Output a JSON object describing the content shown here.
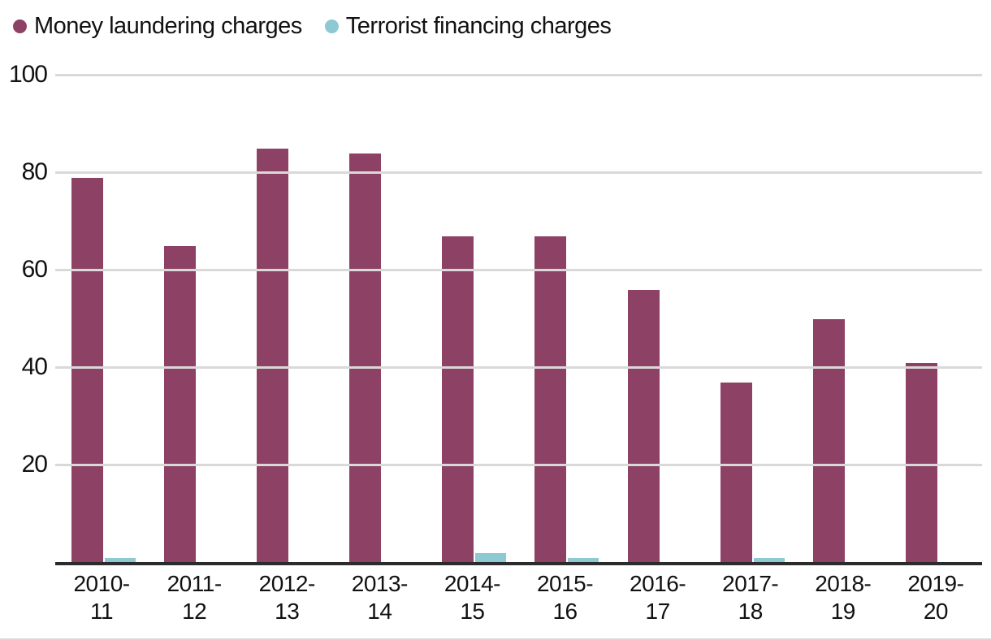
{
  "colors": {
    "money_laundering": "#8d4164",
    "terrorist_financing": "#8cc9d2",
    "gridline": "#d9d9d9",
    "axis_line": "#2b2b2b",
    "text": "#111111"
  },
  "chart_data": {
    "type": "bar",
    "title": "",
    "xlabel": "",
    "ylabel": "",
    "categories": [
      "2010-11",
      "2011-12",
      "2012-13",
      "2013-14",
      "2014-15",
      "2015-16",
      "2016-17",
      "2017-18",
      "2018-19",
      "2019-20"
    ],
    "series": [
      {
        "name": "Money laundering charges",
        "color": "#8d4164",
        "values": [
          79,
          65,
          85,
          84,
          67,
          67,
          56,
          37,
          50,
          41
        ]
      },
      {
        "name": "Terrorist financing charges",
        "color": "#8cc9d2",
        "values": [
          1,
          0,
          0,
          0,
          2,
          1,
          0,
          1,
          0,
          0
        ]
      }
    ],
    "ylim": [
      0,
      100
    ],
    "yticks": [
      20,
      40,
      60,
      80,
      100
    ],
    "grid": "horizontal",
    "legend_position": "top-left"
  }
}
